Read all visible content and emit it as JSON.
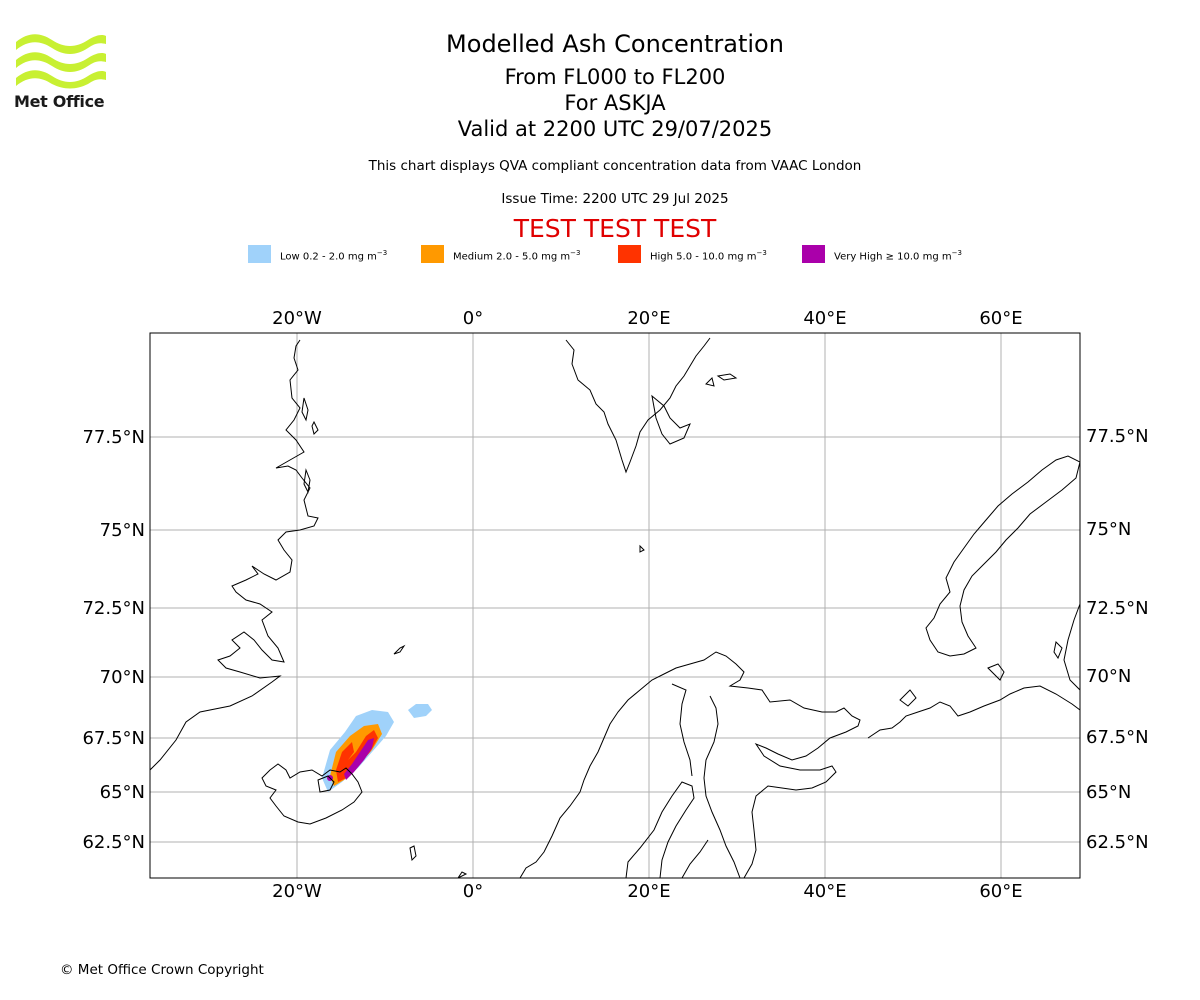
{
  "brand": {
    "name": "Met Office",
    "logo_color": "#c8f032"
  },
  "header": {
    "title": "Modelled Ash Concentration",
    "levels": "From FL000 to FL200",
    "volcano": "For ASKJA",
    "valid": "Valid at 2200 UTC 29/07/2025",
    "description": "This chart displays QVA compliant concentration data from VAAC London",
    "issue_time": "Issue Time: 2200 UTC 29 Jul 2025",
    "test_banner": "TEST TEST TEST"
  },
  "legend": [
    {
      "name": "Low",
      "label": "Low 0.2 - 2.0 mg m",
      "unit_exp": "−3",
      "color": "#a0d2fa"
    },
    {
      "name": "Medium",
      "label": "Medium 2.0 - 5.0 mg m",
      "unit_exp": "−3",
      "color": "#ff9900"
    },
    {
      "name": "High",
      "label": "High 5.0 - 10.0 mg m",
      "unit_exp": "−3",
      "color": "#ff3300"
    },
    {
      "name": "Very High",
      "label": "Very High  ≥  10.0 mg m",
      "unit_exp": "−3",
      "color": "#aa00aa"
    }
  ],
  "map": {
    "top_longitude_labels": [
      "20°W",
      "0°",
      "20°E",
      "40°E",
      "60°E"
    ],
    "bottom_longitude_labels": [
      "20°W",
      "0°",
      "20°E",
      "40°E",
      "60°E"
    ],
    "left_latitude_labels": [
      "77.5°N",
      "75°N",
      "72.5°N",
      "70°N",
      "67.5°N",
      "65°N",
      "62.5°N"
    ],
    "right_latitude_labels": [
      "77.5°N",
      "75°N",
      "72.5°N",
      "70°N",
      "67.5°N",
      "65°N",
      "62.5°N"
    ],
    "gridline_color": "#b0b0b0",
    "coastline_color": "#000000"
  },
  "footer": {
    "copyright": "© Met Office Crown Copyright"
  }
}
